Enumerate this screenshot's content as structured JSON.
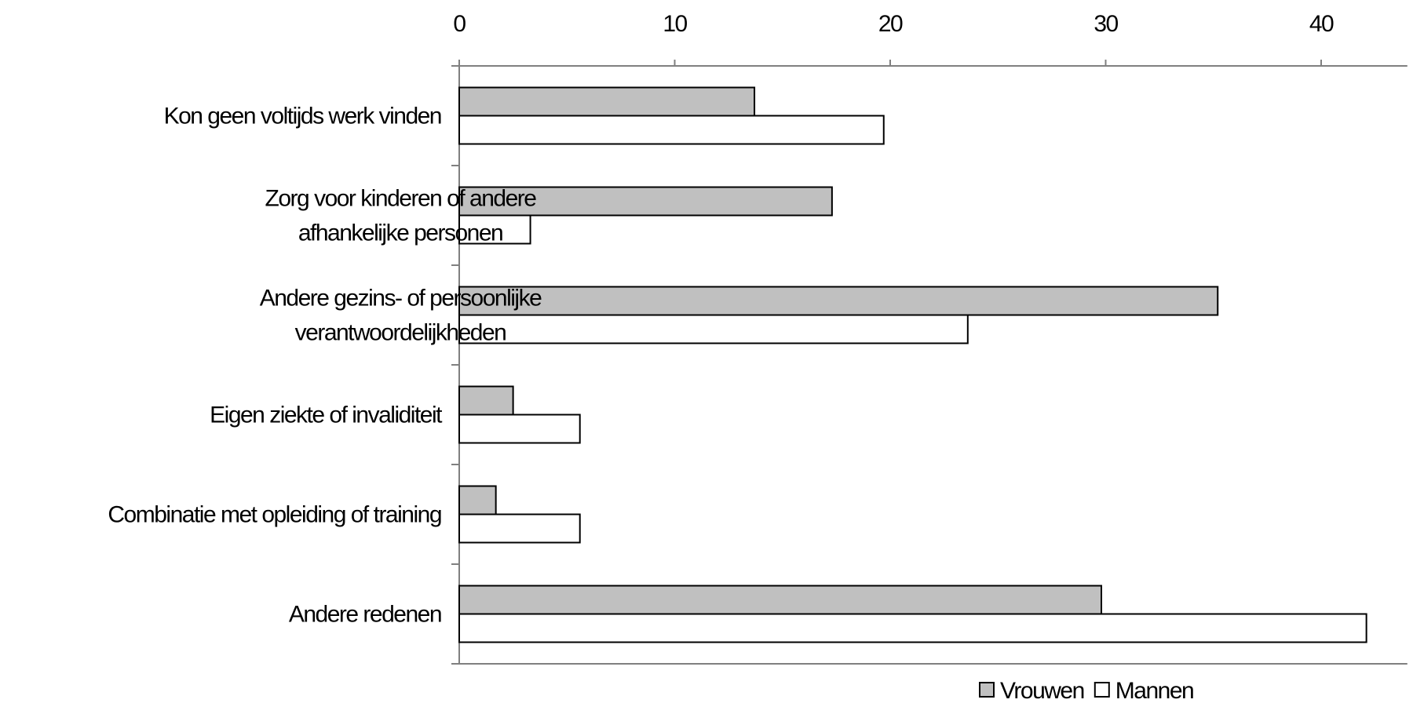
{
  "chart_data": {
    "type": "bar",
    "orientation": "horizontal",
    "categories": [
      [
        "Kon geen voltijds werk vinden"
      ],
      [
        "Zorg voor kinderen of andere",
        "afhankelijke personen"
      ],
      [
        "Andere gezins- of persoonlijke",
        "verantwoordelijkheden"
      ],
      [
        "Eigen ziekte of invaliditeit"
      ],
      [
        "Combinatie met opleiding of training"
      ],
      [
        "Andere redenen"
      ]
    ],
    "series": [
      {
        "name": "Vrouwen",
        "color": "#c0c0c0",
        "values": [
          13.7,
          17.3,
          35.2,
          2.5,
          1.7,
          29.8
        ]
      },
      {
        "name": "Mannen",
        "color": "#ffffff",
        "values": [
          19.7,
          3.3,
          23.6,
          5.6,
          5.6,
          42.1
        ]
      }
    ],
    "xlim": [
      0,
      44
    ],
    "xticks": [
      0,
      10,
      20,
      30,
      40
    ],
    "xtick_labels": [
      "0",
      "10",
      "20",
      "30",
      "40"
    ],
    "xaxis_position": "top",
    "grid": false,
    "legend_position": "bottom-right",
    "title": "",
    "xlabel": "",
    "ylabel": ""
  }
}
